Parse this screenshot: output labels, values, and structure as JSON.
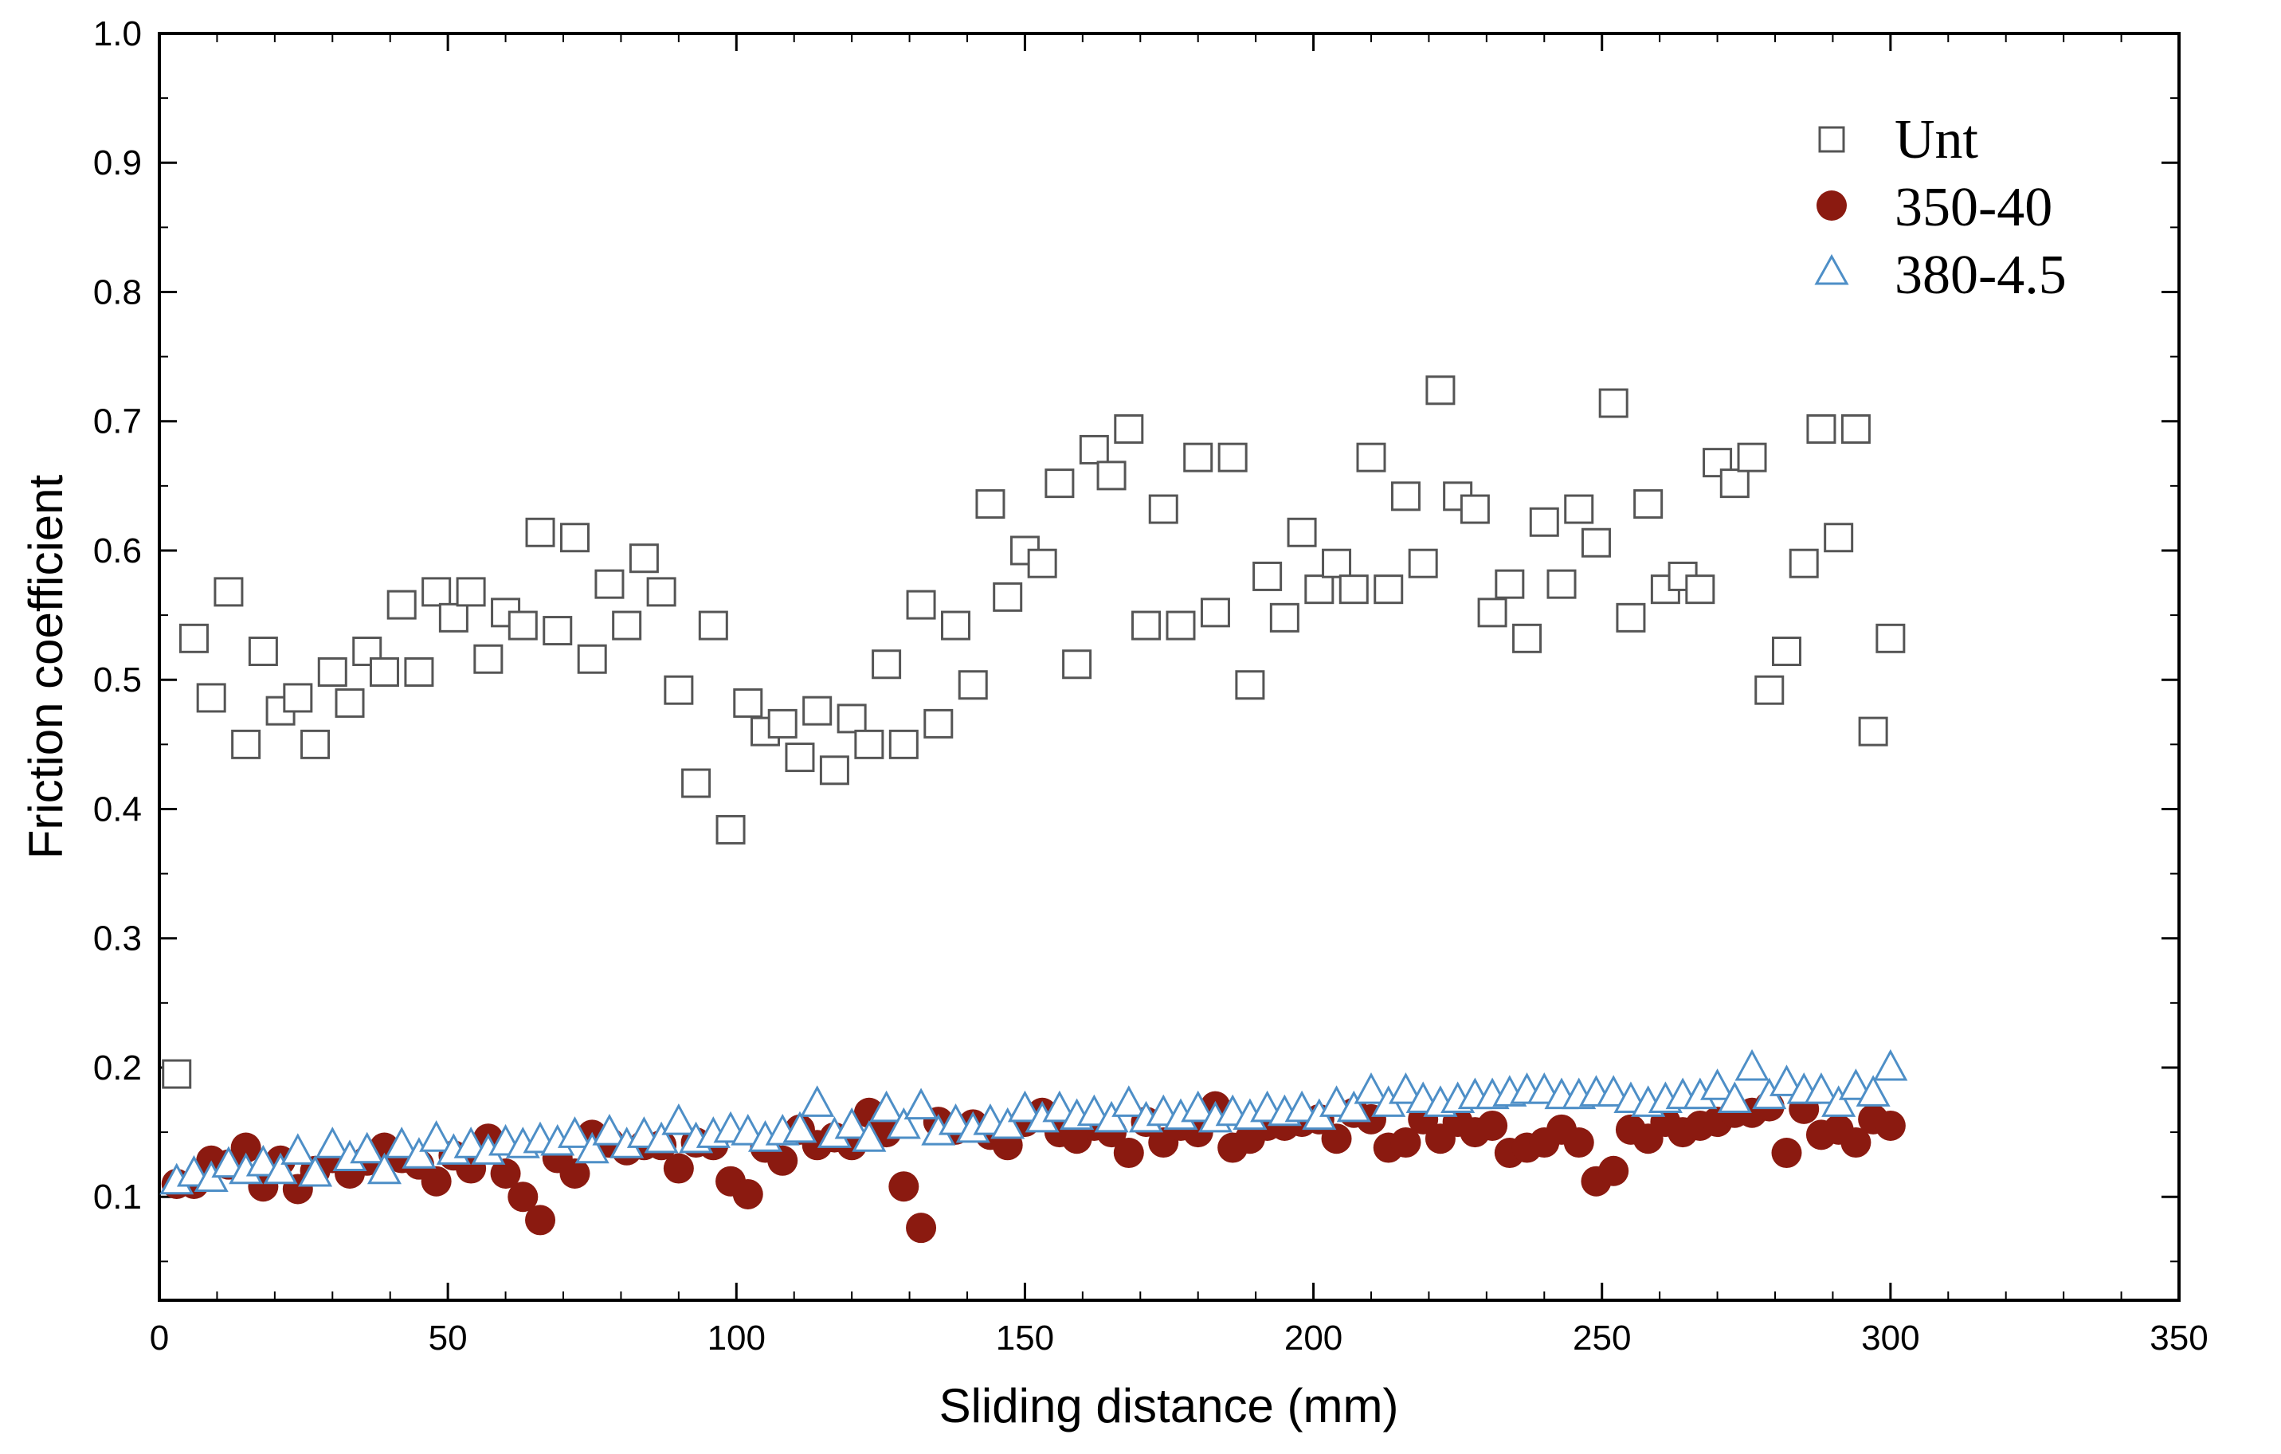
{
  "chart_data": {
    "type": "scatter",
    "title": "",
    "xlabel": "Sliding distance (mm)",
    "ylabel": "Friction coefficient",
    "xlim": [
      0,
      350
    ],
    "ylim": [
      0.02,
      1.0
    ],
    "xticks": [
      0,
      50,
      100,
      150,
      200,
      250,
      300,
      350
    ],
    "xtick_labels": [
      "0",
      "50",
      "100",
      "150",
      "200",
      "250",
      "300",
      "350"
    ],
    "yticks": [
      0.1,
      0.2,
      0.3,
      0.4,
      0.5,
      0.6,
      0.7,
      0.8,
      0.9,
      1.0
    ],
    "ytick_labels": [
      "0.1",
      "0.2",
      "0.3",
      "0.4",
      "0.5",
      "0.6",
      "0.7",
      "0.8",
      "0.9",
      "1.0"
    ],
    "grid": false,
    "legend_position": "top-right",
    "series": [
      {
        "name": "Unt",
        "marker": "square",
        "color": "#555555",
        "x": [
          3,
          6,
          9,
          12,
          15,
          18,
          21,
          24,
          27,
          30,
          33,
          36,
          39,
          42,
          45,
          48,
          51,
          54,
          57,
          60,
          63,
          66,
          69,
          72,
          75,
          78,
          81,
          84,
          87,
          90,
          93,
          96,
          99,
          102,
          105,
          108,
          111,
          114,
          117,
          120,
          123,
          126,
          129,
          132,
          135,
          138,
          141,
          144,
          147,
          150,
          153,
          156,
          159,
          162,
          165,
          168,
          171,
          174,
          177,
          180,
          183,
          186,
          189,
          192,
          195,
          198,
          201,
          204,
          207,
          210,
          213,
          216,
          219,
          222,
          225,
          228,
          231,
          234,
          237,
          240,
          243,
          246,
          249,
          252,
          255,
          258,
          261,
          264,
          267,
          270,
          273,
          276,
          279,
          282,
          285,
          288,
          291,
          294,
          297,
          300
        ],
        "y": [
          0.195,
          0.532,
          0.486,
          0.568,
          0.45,
          0.522,
          0.476,
          0.486,
          0.45,
          0.506,
          0.482,
          0.522,
          0.506,
          0.558,
          0.506,
          0.568,
          0.548,
          0.568,
          0.516,
          0.552,
          0.542,
          0.614,
          0.538,
          0.61,
          0.516,
          0.574,
          0.542,
          0.594,
          0.568,
          0.492,
          0.42,
          0.542,
          0.384,
          0.482,
          0.46,
          0.466,
          0.44,
          0.476,
          0.43,
          0.47,
          0.45,
          0.512,
          0.45,
          0.558,
          0.466,
          0.542,
          0.496,
          0.636,
          0.564,
          0.6,
          0.59,
          0.652,
          0.512,
          0.678,
          0.658,
          0.694,
          0.542,
          0.632,
          0.542,
          0.672,
          0.552,
          0.672,
          0.496,
          0.58,
          0.548,
          0.614,
          0.57,
          0.59,
          0.57,
          0.672,
          0.57,
          0.642,
          0.59,
          0.724,
          0.642,
          0.632,
          0.552,
          0.574,
          0.532,
          0.622,
          0.574,
          0.632,
          0.606,
          0.714,
          0.548,
          0.636,
          0.57,
          0.58,
          0.57,
          0.668,
          0.652,
          0.672,
          0.492,
          0.522,
          0.59,
          0.694,
          0.61,
          0.694,
          0.46,
          0.532
        ]
      },
      {
        "name": "350-40",
        "marker": "circle",
        "color": "#8B1A10",
        "x": [
          3,
          6,
          9,
          12,
          15,
          18,
          21,
          24,
          27,
          30,
          33,
          36,
          39,
          42,
          45,
          48,
          51,
          54,
          57,
          60,
          63,
          66,
          69,
          72,
          75,
          78,
          81,
          84,
          87,
          90,
          93,
          96,
          99,
          102,
          105,
          108,
          111,
          114,
          117,
          120,
          123,
          126,
          129,
          132,
          135,
          138,
          141,
          144,
          147,
          150,
          153,
          156,
          159,
          162,
          165,
          168,
          171,
          174,
          177,
          180,
          183,
          186,
          189,
          192,
          195,
          198,
          201,
          204,
          207,
          210,
          213,
          216,
          219,
          222,
          225,
          228,
          231,
          234,
          237,
          240,
          243,
          246,
          249,
          252,
          255,
          258,
          261,
          264,
          267,
          270,
          273,
          276,
          279,
          282,
          285,
          288,
          291,
          294,
          297,
          300
        ],
        "y": [
          0.11,
          0.11,
          0.128,
          0.125,
          0.138,
          0.108,
          0.128,
          0.106,
          0.12,
          0.13,
          0.118,
          0.128,
          0.138,
          0.13,
          0.125,
          0.112,
          0.132,
          0.122,
          0.145,
          0.118,
          0.1,
          0.082,
          0.13,
          0.118,
          0.148,
          0.142,
          0.136,
          0.14,
          0.14,
          0.122,
          0.142,
          0.14,
          0.112,
          0.102,
          0.138,
          0.128,
          0.152,
          0.14,
          0.146,
          0.14,
          0.165,
          0.15,
          0.108,
          0.076,
          0.158,
          0.152,
          0.156,
          0.148,
          0.14,
          0.158,
          0.165,
          0.15,
          0.145,
          0.155,
          0.15,
          0.134,
          0.158,
          0.142,
          0.155,
          0.15,
          0.17,
          0.138,
          0.145,
          0.155,
          0.155,
          0.158,
          0.16,
          0.145,
          0.165,
          0.16,
          0.138,
          0.142,
          0.16,
          0.145,
          0.158,
          0.15,
          0.155,
          0.134,
          0.138,
          0.142,
          0.152,
          0.142,
          0.112,
          0.12,
          0.152,
          0.145,
          0.158,
          0.15,
          0.155,
          0.158,
          0.165,
          0.165,
          0.17,
          0.134,
          0.168,
          0.148,
          0.152,
          0.142,
          0.16,
          0.155
        ]
      },
      {
        "name": "380-4.5",
        "marker": "triangle",
        "color": "#4E8FC7",
        "x": [
          3,
          6,
          9,
          12,
          15,
          18,
          21,
          24,
          27,
          30,
          33,
          36,
          39,
          42,
          45,
          48,
          51,
          54,
          57,
          60,
          63,
          66,
          69,
          72,
          75,
          78,
          81,
          84,
          87,
          90,
          93,
          96,
          99,
          102,
          105,
          108,
          111,
          114,
          117,
          120,
          123,
          126,
          129,
          132,
          135,
          138,
          141,
          144,
          147,
          150,
          153,
          156,
          159,
          162,
          165,
          168,
          171,
          174,
          177,
          180,
          183,
          186,
          189,
          192,
          195,
          198,
          201,
          204,
          207,
          210,
          213,
          216,
          219,
          222,
          225,
          228,
          231,
          234,
          237,
          240,
          243,
          246,
          249,
          252,
          255,
          258,
          261,
          264,
          267,
          270,
          273,
          276,
          279,
          282,
          285,
          288,
          291,
          294,
          297,
          300
        ],
        "y": [
          0.112,
          0.118,
          0.114,
          0.125,
          0.12,
          0.126,
          0.12,
          0.135,
          0.118,
          0.14,
          0.13,
          0.136,
          0.12,
          0.14,
          0.132,
          0.145,
          0.135,
          0.14,
          0.135,
          0.142,
          0.14,
          0.144,
          0.142,
          0.148,
          0.136,
          0.15,
          0.14,
          0.148,
          0.144,
          0.158,
          0.144,
          0.148,
          0.152,
          0.15,
          0.145,
          0.15,
          0.152,
          0.172,
          0.148,
          0.155,
          0.145,
          0.168,
          0.155,
          0.17,
          0.15,
          0.158,
          0.152,
          0.158,
          0.155,
          0.168,
          0.16,
          0.168,
          0.162,
          0.165,
          0.16,
          0.172,
          0.16,
          0.165,
          0.162,
          0.168,
          0.16,
          0.165,
          0.162,
          0.168,
          0.165,
          0.168,
          0.162,
          0.172,
          0.168,
          0.182,
          0.172,
          0.182,
          0.175,
          0.172,
          0.175,
          0.178,
          0.178,
          0.18,
          0.182,
          0.182,
          0.178,
          0.178,
          0.18,
          0.18,
          0.175,
          0.172,
          0.175,
          0.178,
          0.178,
          0.185,
          0.175,
          0.2,
          0.178,
          0.188,
          0.182,
          0.182,
          0.172,
          0.185,
          0.18,
          0.2
        ]
      }
    ]
  },
  "colors": {
    "unt": "#555555",
    "treated_350_40": "#8B1A10",
    "treated_380_4_5": "#4E8FC7"
  }
}
